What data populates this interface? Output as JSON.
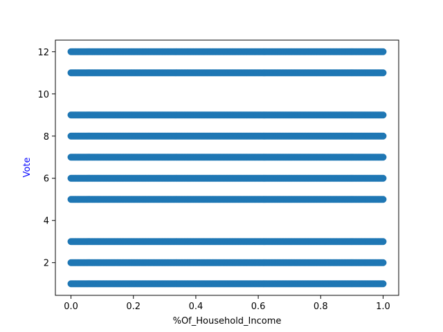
{
  "chart_data": {
    "type": "scatter",
    "title": "",
    "xlabel": "%Of_Household_Income",
    "ylabel": "Vote",
    "xlim": [
      -0.05,
      1.05
    ],
    "ylim": [
      0.45,
      12.55
    ],
    "grid": false,
    "legend": "none",
    "x_ticks": [
      0.0,
      0.2,
      0.4,
      0.6,
      0.8,
      1.0
    ],
    "x_tick_labels": [
      "0.0",
      "0.2",
      "0.4",
      "0.6",
      "0.8",
      "1.0"
    ],
    "y_ticks": [
      2,
      4,
      6,
      8,
      10,
      12
    ],
    "y_tick_labels": [
      "2",
      "4",
      "6",
      "8",
      "10",
      "12"
    ],
    "series": [
      {
        "color": "#1f77b4",
        "rows": [
          {
            "y": 12,
            "x_from": 0.0,
            "x_to": 1.0
          },
          {
            "y": 11,
            "x_from": 0.0,
            "x_to": 1.0
          },
          {
            "y": 9,
            "x_from": 0.0,
            "x_to": 1.0
          },
          {
            "y": 8,
            "x_from": 0.0,
            "x_to": 1.0
          },
          {
            "y": 7,
            "x_from": 0.0,
            "x_to": 1.0
          },
          {
            "y": 6,
            "x_from": 0.0,
            "x_to": 1.0
          },
          {
            "y": 5,
            "x_from": 0.0,
            "x_to": 1.0
          },
          {
            "y": 3,
            "x_from": 0.0,
            "x_to": 1.0
          },
          {
            "y": 2,
            "x_from": 0.0,
            "x_to": 1.0
          },
          {
            "y": 1,
            "x_from": 0.0,
            "x_to": 1.0
          }
        ]
      }
    ]
  },
  "colors": {
    "point": "#1f77b4",
    "ylabel": "#0000ff",
    "xlabel": "#000000",
    "axes": "#000000"
  }
}
